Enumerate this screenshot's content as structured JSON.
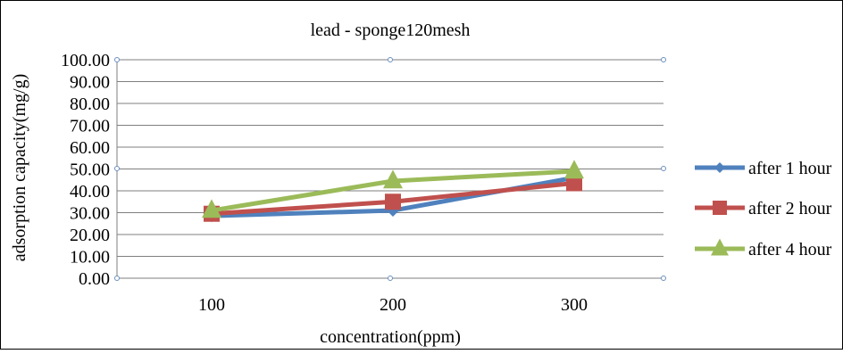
{
  "chart_data": {
    "type": "line",
    "title": "lead - sponge120mesh",
    "xlabel": "concentration(ppm)",
    "ylabel": "adsorption capacity(mg/g)",
    "categories": [
      "100",
      "200",
      "300"
    ],
    "ylim": [
      0,
      100
    ],
    "yticks": [
      "0.00",
      "10.00",
      "20.00",
      "30.00",
      "40.00",
      "50.00",
      "60.00",
      "70.00",
      "80.00",
      "90.00",
      "100.00"
    ],
    "grid": true,
    "legend_position": "right",
    "series": [
      {
        "name": "after 1 hour",
        "values": [
          28.5,
          31.0,
          46.0
        ],
        "color": "#4F81BD",
        "marker": "diamond"
      },
      {
        "name": "after 2 hour",
        "values": [
          29.5,
          35.0,
          43.5
        ],
        "color": "#C0504D",
        "marker": "square"
      },
      {
        "name": "after 4 hour",
        "values": [
          31.0,
          44.5,
          49.0
        ],
        "color": "#9BBB59",
        "marker": "triangle"
      }
    ]
  }
}
